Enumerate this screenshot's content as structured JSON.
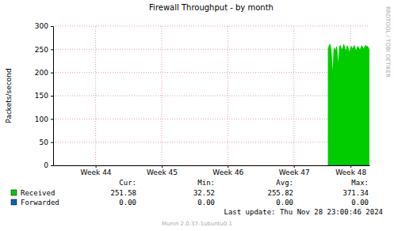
{
  "chart_data": {
    "type": "area",
    "title": "Firewall Throughput - by month",
    "y_label": "Packets/second",
    "watermark": "RRDTOOL / TOBI OETIKER",
    "last_update": "Last update: Thu Nov 28 23:00:46 2024",
    "footer": "Munin 2.0.37-1ubuntu0.1",
    "stat_names": [
      "Cur:",
      "Min:",
      "Avg:",
      "Max:"
    ],
    "grid": true,
    "xlim": [
      0,
      33.5
    ],
    "xticks": [
      {
        "value": 4.5,
        "label": "Week 44"
      },
      {
        "value": 11.5,
        "label": "Week 45"
      },
      {
        "value": 18.5,
        "label": "Week 46"
      },
      {
        "value": 25.5,
        "label": "Week 47"
      },
      {
        "value": 31.5,
        "label": "Week 48"
      }
    ],
    "ylim": [
      0,
      300
    ],
    "yticks": [
      0,
      50,
      100,
      150,
      200,
      250,
      300
    ],
    "x": [
      29.1,
      29.2,
      29.3,
      29.4,
      29.5,
      29.6,
      29.7,
      29.8,
      29.9,
      30.0,
      30.1,
      30.2,
      30.3,
      30.4,
      30.5,
      30.6,
      30.7,
      30.8,
      30.9,
      31.0,
      31.1,
      31.2,
      31.3,
      31.4,
      31.5,
      31.6,
      31.7,
      31.8,
      31.9,
      32.0,
      32.1,
      32.2,
      32.3,
      32.4,
      32.5,
      32.6,
      32.7,
      32.8,
      32.9,
      33.0,
      33.1,
      33.2,
      33.3,
      33.4,
      33.5
    ],
    "series": [
      {
        "name": "Received",
        "color": "#00cc00",
        "type": "area",
        "values": [
          252,
          258,
          262,
          258,
          245,
          205,
          250,
          255,
          248,
          258,
          252,
          222,
          255,
          260,
          256,
          250,
          258,
          262,
          255,
          248,
          256,
          259,
          250,
          245,
          255,
          258,
          252,
          256,
          260,
          254,
          248,
          255,
          258,
          252,
          250,
          256,
          259,
          255,
          252,
          257,
          260,
          256,
          258,
          254,
          250
        ],
        "stats": [
          251.58,
          32.52,
          255.82,
          371.34
        ]
      },
      {
        "name": "Forwarded",
        "color": "#0066b3",
        "type": "line",
        "values": [
          0,
          0,
          0,
          0,
          0,
          0,
          0,
          0,
          0,
          0,
          0,
          0,
          0,
          0,
          0,
          0,
          0,
          0,
          0,
          0,
          0,
          0,
          0,
          0,
          0,
          0,
          0,
          0,
          0,
          0,
          0,
          0,
          0,
          0,
          0,
          0,
          0,
          0,
          0,
          0,
          0,
          0,
          0,
          0,
          0
        ],
        "stats": [
          {
            "value": 0,
            "label": "0.00"
          },
          {
            "value": 0,
            "label": "0.00"
          },
          {
            "value": 0,
            "label": "0.00"
          },
          {
            "value": 0,
            "label": "0.00"
          }
        ]
      }
    ]
  }
}
